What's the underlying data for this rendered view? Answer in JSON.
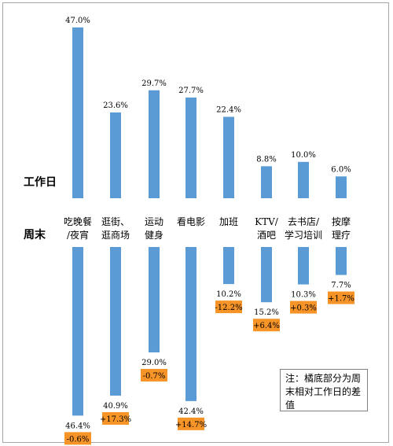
{
  "chart_data": {
    "type": "bar",
    "row_labels": {
      "weekday": "工作日",
      "weekend": "周末"
    },
    "categories": [
      {
        "lines": [
          "吃晚餐",
          "/夜宵"
        ]
      },
      {
        "lines": [
          "逛街、",
          "逛商场"
        ]
      },
      {
        "lines": [
          "运动",
          "健身"
        ]
      },
      {
        "lines": [
          "看电影"
        ]
      },
      {
        "lines": [
          "加班"
        ]
      },
      {
        "lines": [
          "KTV/",
          "酒吧"
        ]
      },
      {
        "lines": [
          "去书店/",
          "学习培训"
        ]
      },
      {
        "lines": [
          "按摩",
          "理疗"
        ]
      }
    ],
    "series": [
      {
        "name": "工作日",
        "values": [
          47.0,
          23.6,
          29.7,
          27.7,
          22.4,
          8.8,
          10.0,
          6.0
        ],
        "labels": [
          "47.0%",
          "23.6%",
          "29.7%",
          "27.7%",
          "22.4%",
          "8.8%",
          "10.0%",
          "6.0%"
        ]
      },
      {
        "name": "周末",
        "values": [
          46.4,
          40.9,
          29.0,
          42.4,
          10.2,
          15.2,
          10.3,
          7.7
        ],
        "labels": [
          "46.4%",
          "40.9%",
          "29.0%",
          "42.4%",
          "10.2%",
          "15.2%",
          "10.3%",
          "7.7%"
        ]
      }
    ],
    "differences": [
      "-0.6%",
      "+17.3%",
      "-0.7%",
      "+14.7%",
      "-12.2%",
      "+6.4%",
      "+0.3%",
      "+1.7%"
    ],
    "colors": {
      "bar": "#5b9bd5",
      "diff_box": "#f79428"
    }
  },
  "note": {
    "text": "注：橘底部分为周末相对工作日的差值"
  }
}
